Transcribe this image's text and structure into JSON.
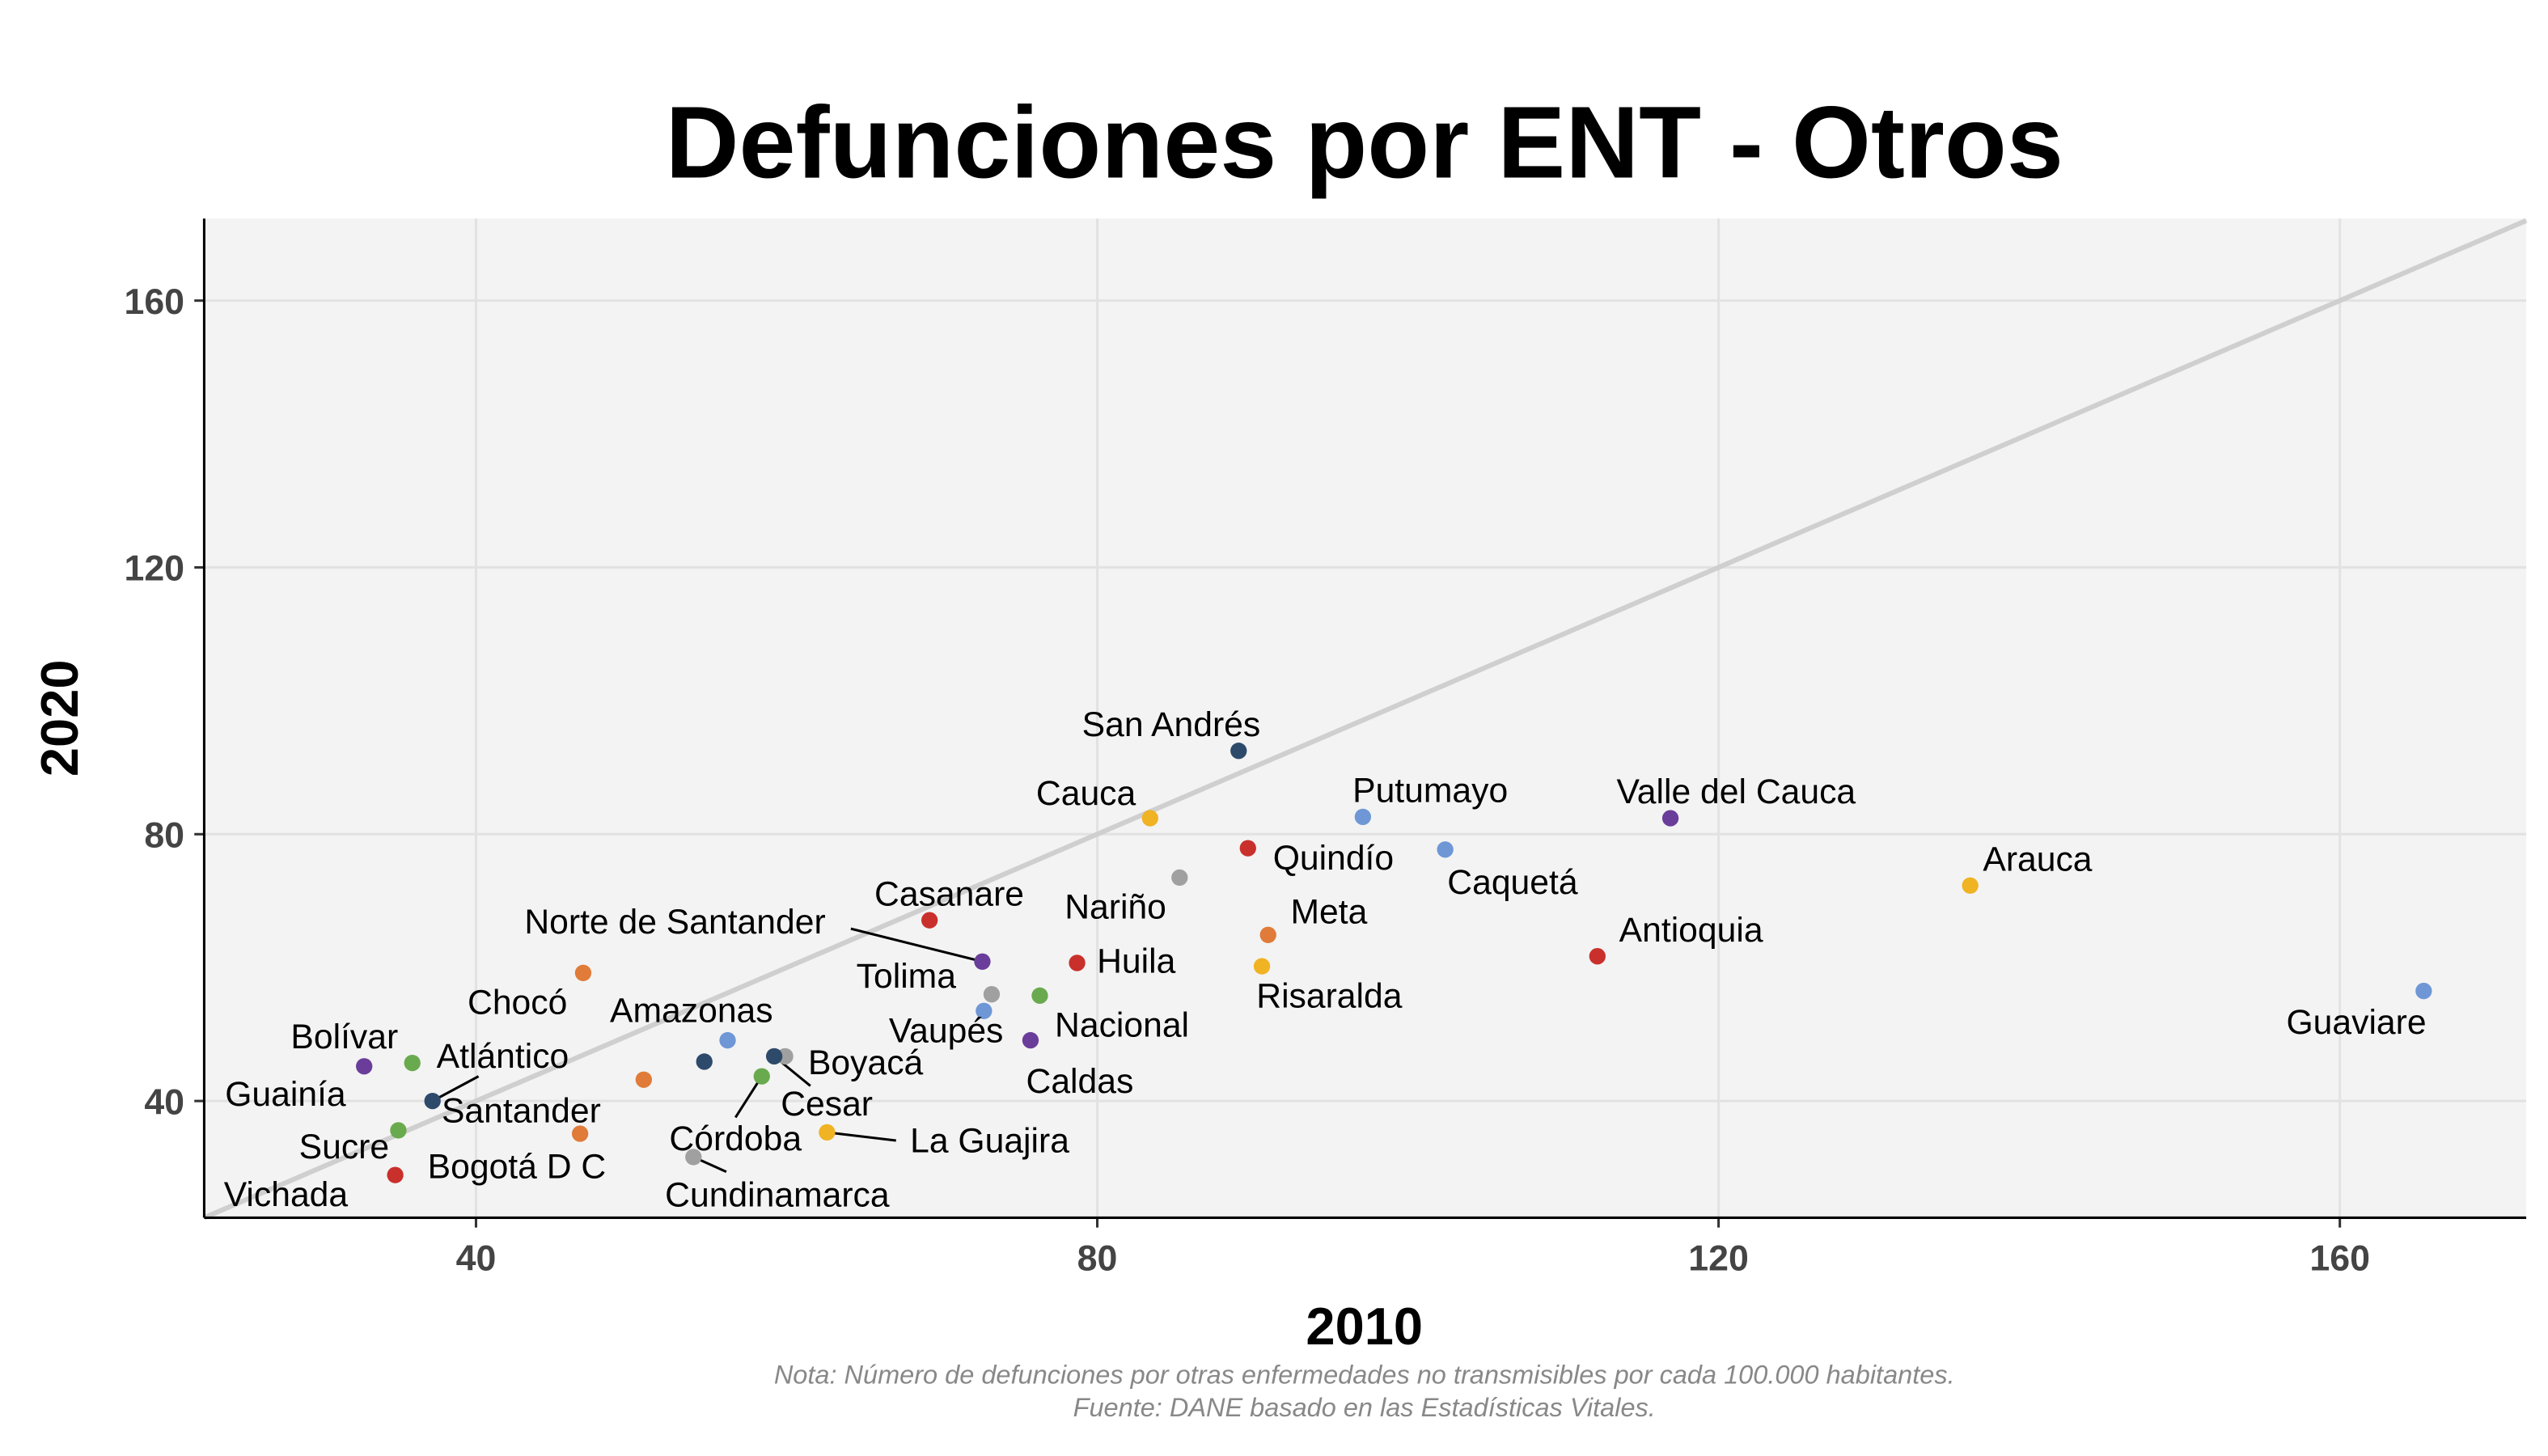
{
  "chart_data": {
    "type": "scatter",
    "title": "Defunciones por ENT - Otros",
    "x_label": "2010",
    "y_label": "2020",
    "notes": [
      "Nota: Número de defunciones por otras enfermedades no transmisibles por cada 100.000 habitantes.",
      "Fuente: DANE basado en las Estadísticas Vitales."
    ],
    "xlim": [
      22.5,
      172
    ],
    "ylim": [
      22.5,
      172.3
    ],
    "xticks": [
      40,
      80,
      120,
      160
    ],
    "yticks": [
      40,
      80,
      120,
      160
    ],
    "grid": true,
    "reference_line": "y=x",
    "points": [
      {
        "label": "San Andrés",
        "x": 89.1,
        "y": 92.5,
        "color": "#2e4a6b"
      },
      {
        "label": "Cauca",
        "x": 83.4,
        "y": 82.4,
        "color": "#f0b323"
      },
      {
        "label": "Putumayo",
        "x": 97.1,
        "y": 82.6,
        "color": "#6f97d6"
      },
      {
        "label": "Valle del Cauca",
        "x": 116.9,
        "y": 82.4,
        "color": "#6a3d9a"
      },
      {
        "label": "Quindío",
        "x": 89.7,
        "y": 77.9,
        "color": "#c9302c"
      },
      {
        "label": "Caquetá",
        "x": 102.4,
        "y": 77.7,
        "color": "#6f97d6"
      },
      {
        "label": "Nariño",
        "x": 85.3,
        "y": 73.5,
        "color": "#a0a0a0"
      },
      {
        "label": "Arauca",
        "x": 136.2,
        "y": 72.3,
        "color": "#f0b323"
      },
      {
        "label": "Casanare",
        "x": 69.2,
        "y": 67.1,
        "color": "#c9302c"
      },
      {
        "label": "Meta",
        "x": 91.0,
        "y": 64.9,
        "color": "#e07b39"
      },
      {
        "label": "Norte de Santander",
        "x": 72.6,
        "y": 60.9,
        "color": "#6a3d9a"
      },
      {
        "label": "Huila",
        "x": 78.7,
        "y": 60.7,
        "color": "#c9302c"
      },
      {
        "label": "Antioquia",
        "x": 112.2,
        "y": 61.7,
        "color": "#c9302c"
      },
      {
        "label": "Risaralda",
        "x": 90.6,
        "y": 60.2,
        "color": "#f0b323"
      },
      {
        "label": "Chocó",
        "x": 46.9,
        "y": 59.2,
        "color": "#e07b39"
      },
      {
        "label": "Tolima",
        "x": 73.2,
        "y": 56.0,
        "color": "#a0a0a0"
      },
      {
        "label": "Nacional",
        "x": 76.3,
        "y": 55.8,
        "color": "#6aaa4f"
      },
      {
        "label": "Guaviare",
        "x": 165.4,
        "y": 56.5,
        "color": "#6f97d6"
      },
      {
        "label": "Vaupés",
        "x": 72.7,
        "y": 53.5,
        "color": "#6f97d6"
      },
      {
        "label": "Amazonas",
        "x": 56.2,
        "y": 49.1,
        "color": "#6f97d6"
      },
      {
        "label": "Caldas",
        "x": 75.7,
        "y": 49.1,
        "color": "#6a3d9a"
      },
      {
        "label": "Boyacá",
        "x": 59.9,
        "y": 46.7,
        "color": "#a0a0a0"
      },
      {
        "label": "Cesar",
        "x": 59.2,
        "y": 46.7,
        "color": "#2e4a6b"
      },
      {
        "label": "Bolívar",
        "x": 32.8,
        "y": 45.2,
        "color": "#6a3d9a"
      },
      {
        "label": "Atlántico",
        "x": 35.9,
        "y": 45.7,
        "color": "#6aaa4f"
      },
      {
        "label": "Santander",
        "x": 37.2,
        "y": 40.0,
        "color": "#2e4a6b"
      },
      {
        "label": "Guainía",
        "x": 50.8,
        "y": 43.2,
        "color": "#e07b39"
      },
      {
        "label": "Sucre",
        "x": 35.0,
        "y": 35.6,
        "color": "#6aaa4f"
      },
      {
        "label": "Bogotá D C",
        "x": 34.8,
        "y": 28.9,
        "color": "#c9302c"
      },
      {
        "label": "Vichada",
        "x": 46.7,
        "y": 35.1,
        "color": "#e07b39"
      },
      {
        "label": "Córdoba",
        "x": 58.4,
        "y": 43.7,
        "color": "#6aaa4f"
      },
      {
        "label": "Cundinamarca",
        "x": 54.0,
        "y": 31.6,
        "color": "#a0a0a0"
      },
      {
        "label": "La Guajira",
        "x": 62.6,
        "y": 35.3,
        "color": "#f0b323"
      },
      {
        "label": null,
        "x": 54.7,
        "y": 45.9,
        "color": "#2e4a6b"
      }
    ]
  }
}
